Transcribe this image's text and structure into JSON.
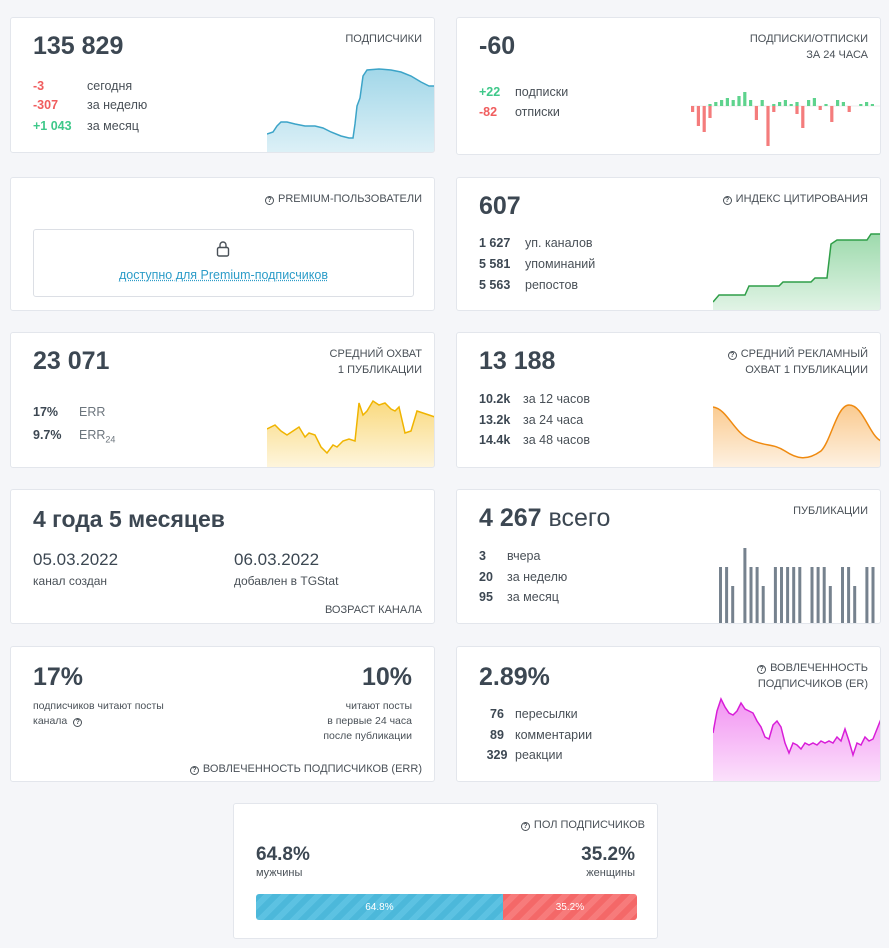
{
  "subscribers": {
    "value": "135 829",
    "label": "ПОДПИСЧИКИ",
    "rows": [
      {
        "value": "-3",
        "text": "сегодня"
      },
      {
        "value": "-307",
        "text": "за неделю"
      },
      {
        "value": "+1 043",
        "text": "за месяц"
      }
    ],
    "chart_color": "#56b6d6"
  },
  "subs_unsubs": {
    "value": "-60",
    "label_line1": "ПОДПИСКИ/ОТПИСКИ",
    "label_line2": "ЗА 24 ЧАСА",
    "rows": [
      {
        "value": "+22",
        "text": "подписки"
      },
      {
        "value": "-82",
        "text": "отписки"
      }
    ],
    "pos_color": "#5ed38d",
    "neg_color": "#f47c7c"
  },
  "premium": {
    "label": "PREMIUM-ПОЛЬЗОВАТЕЛИ",
    "link": "доступно для Premium-подписчиков"
  },
  "citation": {
    "value": "607",
    "label": "ИНДЕКС ЦИТИРОВАНИЯ",
    "rows": [
      {
        "value": "1 627",
        "text": "уп. каналов"
      },
      {
        "value": "5 581",
        "text": "упоминаний"
      },
      {
        "value": "5 563",
        "text": "репостов"
      }
    ],
    "chart_color": "#3cb55a"
  },
  "reach": {
    "value": "23 071",
    "label_line1": "СРЕДНИЙ ОХВАТ",
    "label_line2": "1 ПУБЛИКАЦИИ",
    "rows": [
      {
        "value": "17%",
        "text": "ERR",
        "sub": ""
      },
      {
        "value": "9.7%",
        "text": "ERR",
        "sub": "24"
      }
    ],
    "chart_color": "#f6c12a"
  },
  "ad_reach": {
    "value": "13 188",
    "label_line1": "СРЕДНИЙ РЕКЛАМНЫЙ",
    "label_line2": "ОХВАТ 1 ПУБЛИКАЦИИ",
    "rows": [
      {
        "value": "10.2k",
        "text": "за 12 часов"
      },
      {
        "value": "13.2k",
        "text": "за 24 часа"
      },
      {
        "value": "14.4k",
        "text": "за 48 часов"
      }
    ],
    "chart_color": "#f5951f"
  },
  "age": {
    "value": "4 года 5 месяцев",
    "created_date": "05.03.2022",
    "created_text": "канал создан",
    "added_date": "06.03.2022",
    "added_text": "добавлен в TGStat",
    "label": "ВОЗРАСТ КАНАЛА"
  },
  "publications": {
    "value": "4 267",
    "value_suffix": "всего",
    "label": "ПУБЛИКАЦИИ",
    "rows": [
      {
        "value": "3",
        "text": "вчера"
      },
      {
        "value": "20",
        "text": "за неделю"
      },
      {
        "value": "95",
        "text": "за месяц"
      }
    ],
    "bars": [
      3,
      3,
      2,
      0,
      4,
      3,
      3,
      2,
      0,
      3,
      3,
      3,
      3,
      3,
      0,
      3,
      3,
      3,
      2,
      0,
      3,
      3,
      2,
      0,
      3,
      3
    ],
    "bar_color": "#76828e"
  },
  "err": {
    "left_value": "17%",
    "left_text_line1": "подписчиков читают посты",
    "left_text_line2": "канала",
    "right_value": "10%",
    "right_text_line1": "читают посты",
    "right_text_line2": "в первые 24 часа",
    "right_text_line3": "после публикации",
    "label": "ВОВЛЕЧЕННОСТЬ ПОДПИСЧИКОВ (ERR)"
  },
  "er": {
    "value": "2.89%",
    "label_line1": "ВОВЛЕЧЕННОСТЬ",
    "label_line2": "ПОДПИСЧИКОВ (ER)",
    "rows": [
      {
        "value": "76",
        "text": "пересылки"
      },
      {
        "value": "89",
        "text": "комментарии"
      },
      {
        "value": "329",
        "text": "реакции"
      }
    ],
    "chart_color": "#e83ee8"
  },
  "gender": {
    "label": "ПОЛ ПОДПИСЧИКОВ",
    "male_value": "64.8%",
    "male_text": "мужчины",
    "female_value": "35.2%",
    "female_text": "женщины",
    "male_bar_label": "64.8%",
    "female_bar_label": "35.2%",
    "male_share": 64.8,
    "female_share": 35.2,
    "male_color": "#4cb8da",
    "female_color": "#f46868"
  }
}
